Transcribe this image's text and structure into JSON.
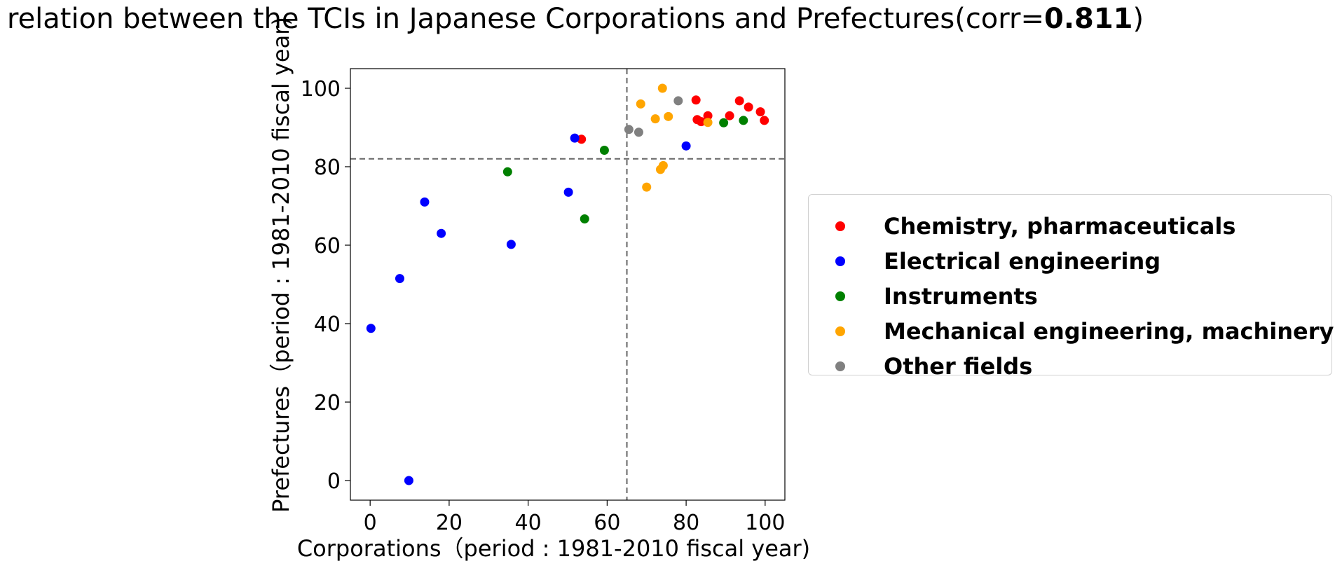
{
  "title": {
    "prefix": "relation between the TCIs in Japanese Corporations and Prefectures(corr=",
    "value": "0.811",
    "suffix": ")"
  },
  "chart_data": {
    "type": "scatter",
    "title": "relation between the TCIs in Japanese Corporations and Prefectures(corr=0.811)",
    "xlabel": "Corporations（period : 1981-2010 fiscal year)",
    "ylabel": "Prefectures（period : 1981-2010 fiscal year)",
    "xlim": [
      -5,
      105
    ],
    "ylim": [
      -5,
      105
    ],
    "xticks": [
      0,
      20,
      40,
      60,
      80,
      100
    ],
    "yticks": [
      0,
      20,
      40,
      60,
      80,
      100
    ],
    "grid": false,
    "legend_position": "right",
    "reference_lines": {
      "vertical_x": 65.0,
      "horizontal_y": 82.0
    },
    "series": [
      {
        "name": "Chemistry, pharmaceuticals",
        "color": "#ff0000",
        "points": [
          [
            53.5,
            87.0
          ],
          [
            82.5,
            97.0
          ],
          [
            82.8,
            92.0
          ],
          [
            83.8,
            91.5
          ],
          [
            85.5,
            93.0
          ],
          [
            91.0,
            93.0
          ],
          [
            93.5,
            96.8
          ],
          [
            95.8,
            95.2
          ],
          [
            98.8,
            94.0
          ],
          [
            99.8,
            91.8
          ]
        ]
      },
      {
        "name": "Electrical engineering",
        "color": "#0000ff",
        "points": [
          [
            0.2,
            38.8
          ],
          [
            7.5,
            51.5
          ],
          [
            9.8,
            0.0
          ],
          [
            13.8,
            71.0
          ],
          [
            18.0,
            63.0
          ],
          [
            35.7,
            60.2
          ],
          [
            50.2,
            73.5
          ],
          [
            51.8,
            87.3
          ],
          [
            80.0,
            85.3
          ]
        ]
      },
      {
        "name": "Instruments",
        "color": "#008000",
        "points": [
          [
            34.8,
            78.7
          ],
          [
            54.3,
            66.7
          ],
          [
            59.3,
            84.2
          ],
          [
            89.5,
            91.2
          ],
          [
            94.5,
            91.8
          ]
        ]
      },
      {
        "name": "Mechanical engineering, machinery",
        "color": "#ffa500",
        "points": [
          [
            68.5,
            96.0
          ],
          [
            70.0,
            74.8
          ],
          [
            72.2,
            92.2
          ],
          [
            73.5,
            79.3
          ],
          [
            74.2,
            80.3
          ],
          [
            74.0,
            100.0
          ],
          [
            75.5,
            92.8
          ],
          [
            85.5,
            91.3
          ]
        ]
      },
      {
        "name": "Other fields",
        "color": "#808080",
        "points": [
          [
            65.5,
            89.5
          ],
          [
            68.0,
            88.8
          ],
          [
            78.0,
            96.8
          ]
        ]
      }
    ]
  }
}
